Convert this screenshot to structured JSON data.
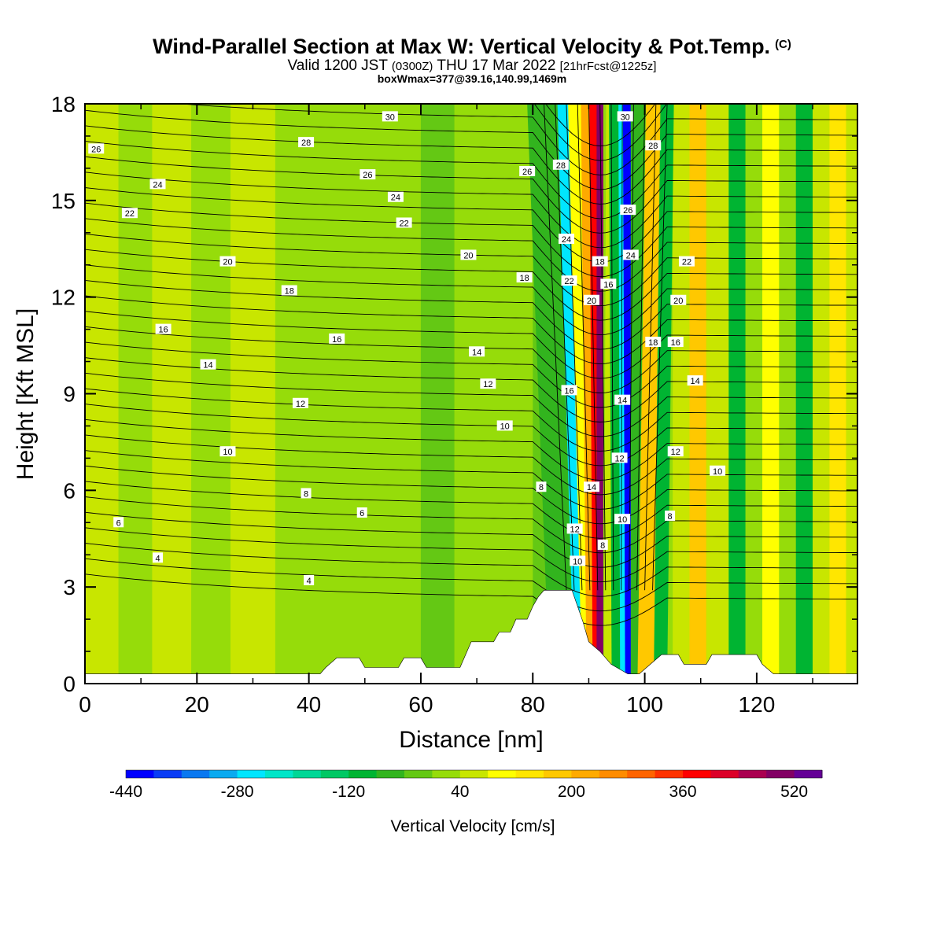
{
  "header": {
    "title": "Wind-Parallel Section at Max W: Vertical Velocity & Pot.Temp.",
    "title_mark": "(C)",
    "valid_label": "Valid 1200 JST",
    "valid_utc": "(0300Z)",
    "valid_date": "THU 17 Mar 2022",
    "forecast": "[21hrFcst@1225z]",
    "boxline": "boxWmax=377@39.16,140.99,1469m"
  },
  "chart_data": {
    "type": "heatmap",
    "xlabel": "Distance [nm]",
    "ylabel": "Height [Kft MSL]",
    "xlim": [
      0,
      138
    ],
    "ylim": [
      0,
      18
    ],
    "x_ticks": [
      0,
      20,
      40,
      60,
      80,
      100,
      120
    ],
    "y_ticks": [
      0,
      3,
      6,
      9,
      12,
      15,
      18
    ],
    "colorbar": {
      "label": "Vertical Velocity [cm/s]",
      "min": -440,
      "step": 40,
      "tick_labels": [
        -440,
        -280,
        -120,
        40,
        200,
        360,
        520
      ],
      "colors": [
        "#0000ff",
        "#0a3cf5",
        "#0a78f0",
        "#0aaaf0",
        "#00e6ff",
        "#00e6c8",
        "#00d796",
        "#00c864",
        "#00b432",
        "#32b41e",
        "#64c814",
        "#96dc0a",
        "#c8e600",
        "#ffff00",
        "#ffe600",
        "#ffc800",
        "#ffaa00",
        "#ff8c00",
        "#ff6400",
        "#ff3200",
        "#ff0000",
        "#dc0028",
        "#aa0050",
        "#820064",
        "#640096"
      ]
    },
    "field_bands": [
      {
        "x0": 0,
        "x1": 6,
        "w": 40
      },
      {
        "x0": 6,
        "x1": 12,
        "w": 0
      },
      {
        "x0": 12,
        "x1": 19,
        "w": 40
      },
      {
        "x0": 19,
        "x1": 26,
        "w": 0
      },
      {
        "x0": 26,
        "x1": 34,
        "w": 40
      },
      {
        "x0": 34,
        "x1": 44,
        "w": 20
      },
      {
        "x0": 44,
        "x1": 52,
        "w": 30
      },
      {
        "x0": 52,
        "x1": 60,
        "w": 20
      },
      {
        "x0": 60,
        "x1": 66,
        "w": -20
      },
      {
        "x0": 66,
        "x1": 74,
        "w": 10
      },
      {
        "x0": 74,
        "x1": 80,
        "w": 30
      },
      {
        "x0": 80,
        "x1": 86,
        "w": -30
      },
      {
        "x0": 105,
        "x1": 108,
        "w": 60
      },
      {
        "x0": 108,
        "x1": 111,
        "w": 180
      },
      {
        "x0": 111,
        "x1": 115,
        "w": 40
      },
      {
        "x0": 115,
        "x1": 118,
        "w": -100
      },
      {
        "x0": 118,
        "x1": 121,
        "w": 20
      },
      {
        "x0": 121,
        "x1": 124,
        "w": 80
      },
      {
        "x0": 124,
        "x1": 127,
        "w": 0
      },
      {
        "x0": 127,
        "x1": 130,
        "w": -120
      },
      {
        "x0": 130,
        "x1": 133,
        "w": 40
      },
      {
        "x0": 133,
        "x1": 136,
        "w": 120
      },
      {
        "x0": 136,
        "x1": 138,
        "w": 40
      }
    ],
    "tilted_bands": [
      {
        "x_bottom": 86,
        "x_top": 82,
        "half_width": 3.0,
        "w": -60
      },
      {
        "x_bottom": 89,
        "x_top": 86,
        "half_width": 1.6,
        "w": -260
      },
      {
        "x_bottom": 90,
        "x_top": 87.5,
        "half_width": 1.2,
        "w": 80
      },
      {
        "x_bottom": 91,
        "x_top": 90,
        "half_width": 1.4,
        "w": 200
      },
      {
        "x_bottom": 91.6,
        "x_top": 91,
        "half_width": 0.9,
        "w": 360
      },
      {
        "x_bottom": 92,
        "x_top": 92,
        "half_width": 0.6,
        "w": 480
      },
      {
        "x_bottom": 93.6,
        "x_top": 94,
        "half_width": 0.9,
        "w": 60
      },
      {
        "x_bottom": 95.5,
        "x_top": 95,
        "half_width": 1.4,
        "w": -120
      },
      {
        "x_bottom": 96.5,
        "x_top": 96.2,
        "half_width": 0.9,
        "w": -280
      },
      {
        "x_bottom": 97.2,
        "x_top": 96.8,
        "half_width": 0.7,
        "w": -420
      },
      {
        "x_bottom": 99,
        "x_top": 99,
        "half_width": 1.5,
        "w": -60
      },
      {
        "x_bottom": 100.5,
        "x_top": 102,
        "half_width": 1.8,
        "w": 160
      },
      {
        "x_bottom": 102.8,
        "x_top": 104,
        "half_width": 1.2,
        "w": -100
      }
    ],
    "terrain_kft": [
      [
        0,
        0.3
      ],
      [
        42,
        0.3
      ],
      [
        43,
        0.5
      ],
      [
        45,
        0.8
      ],
      [
        49,
        0.8
      ],
      [
        50,
        0.5
      ],
      [
        56,
        0.5
      ],
      [
        57,
        0.8
      ],
      [
        60,
        0.8
      ],
      [
        61,
        0.5
      ],
      [
        67,
        0.5
      ],
      [
        68,
        0.9
      ],
      [
        69,
        1.3
      ],
      [
        73,
        1.3
      ],
      [
        74,
        1.6
      ],
      [
        76,
        1.6
      ],
      [
        77,
        2.0
      ],
      [
        79,
        2.0
      ],
      [
        80,
        2.4
      ],
      [
        81,
        2.7
      ],
      [
        82,
        2.9
      ],
      [
        87,
        2.9
      ],
      [
        88,
        2.4
      ],
      [
        89,
        1.9
      ],
      [
        90,
        1.3
      ],
      [
        92,
        1.0
      ],
      [
        94,
        0.6
      ],
      [
        97,
        0.3
      ],
      [
        99,
        0.3
      ],
      [
        101,
        0.6
      ],
      [
        103,
        0.9
      ],
      [
        106,
        0.9
      ],
      [
        107,
        0.6
      ],
      [
        111,
        0.6
      ],
      [
        112,
        0.9
      ],
      [
        120,
        0.9
      ],
      [
        121,
        0.6
      ],
      [
        123,
        0.3
      ],
      [
        138,
        0.3
      ]
    ],
    "theta_contours": {
      "label": "Pot.Temp.",
      "labels": [
        {
          "text": "26",
          "x": 2,
          "y": 16.6
        },
        {
          "text": "24",
          "x": 13,
          "y": 15.5
        },
        {
          "text": "22",
          "x": 8,
          "y": 14.6
        },
        {
          "text": "20",
          "x": 25.5,
          "y": 13.1
        },
        {
          "text": "18",
          "x": 36.5,
          "y": 12.2
        },
        {
          "text": "16",
          "x": 14,
          "y": 11.0
        },
        {
          "text": "16",
          "x": 45,
          "y": 10.7
        },
        {
          "text": "14",
          "x": 22,
          "y": 9.9
        },
        {
          "text": "12",
          "x": 38.5,
          "y": 8.7
        },
        {
          "text": "10",
          "x": 25.5,
          "y": 7.2
        },
        {
          "text": "8",
          "x": 39.5,
          "y": 5.9
        },
        {
          "text": "6",
          "x": 6,
          "y": 5.0
        },
        {
          "text": "6",
          "x": 49.5,
          "y": 5.3
        },
        {
          "text": "4",
          "x": 13,
          "y": 3.9
        },
        {
          "text": "4",
          "x": 40,
          "y": 3.2
        },
        {
          "text": "30",
          "x": 54.5,
          "y": 17.6
        },
        {
          "text": "28",
          "x": 39.5,
          "y": 16.8
        },
        {
          "text": "26",
          "x": 50.5,
          "y": 15.8
        },
        {
          "text": "24",
          "x": 55.5,
          "y": 15.1
        },
        {
          "text": "22",
          "x": 57,
          "y": 14.3
        },
        {
          "text": "20",
          "x": 68.5,
          "y": 13.3
        },
        {
          "text": "18",
          "x": 78.5,
          "y": 12.6
        },
        {
          "text": "14",
          "x": 70,
          "y": 10.3
        },
        {
          "text": "12",
          "x": 72,
          "y": 9.3
        },
        {
          "text": "10",
          "x": 75,
          "y": 8.0
        },
        {
          "text": "8",
          "x": 81.5,
          "y": 6.1
        },
        {
          "text": "26",
          "x": 79,
          "y": 15.9
        },
        {
          "text": "28",
          "x": 85,
          "y": 16.1
        },
        {
          "text": "24",
          "x": 86,
          "y": 13.8
        },
        {
          "text": "22",
          "x": 86.5,
          "y": 12.5
        },
        {
          "text": "18",
          "x": 92,
          "y": 13.1
        },
        {
          "text": "20",
          "x": 90.5,
          "y": 11.9
        },
        {
          "text": "16",
          "x": 93.5,
          "y": 12.4
        },
        {
          "text": "16",
          "x": 86.5,
          "y": 9.1
        },
        {
          "text": "14",
          "x": 96,
          "y": 8.8
        },
        {
          "text": "14",
          "x": 90.5,
          "y": 6.1
        },
        {
          "text": "12",
          "x": 95.5,
          "y": 7.0
        },
        {
          "text": "12",
          "x": 87.5,
          "y": 4.8
        },
        {
          "text": "10",
          "x": 96,
          "y": 5.1
        },
        {
          "text": "10",
          "x": 88,
          "y": 3.8
        },
        {
          "text": "8",
          "x": 92.5,
          "y": 4.3
        },
        {
          "text": "30",
          "x": 96.5,
          "y": 17.6
        },
        {
          "text": "28",
          "x": 101.5,
          "y": 16.7
        },
        {
          "text": "26",
          "x": 97,
          "y": 14.7
        },
        {
          "text": "24",
          "x": 97.5,
          "y": 13.3
        },
        {
          "text": "22",
          "x": 107.5,
          "y": 13.1
        },
        {
          "text": "20",
          "x": 106,
          "y": 11.9
        },
        {
          "text": "18",
          "x": 101.5,
          "y": 10.6
        },
        {
          "text": "16",
          "x": 105.5,
          "y": 10.6
        },
        {
          "text": "14",
          "x": 109,
          "y": 9.4
        },
        {
          "text": "12",
          "x": 105.5,
          "y": 7.2
        },
        {
          "text": "10",
          "x": 113,
          "y": 6.6
        },
        {
          "text": "8",
          "x": 104.5,
          "y": 5.2
        }
      ]
    }
  }
}
